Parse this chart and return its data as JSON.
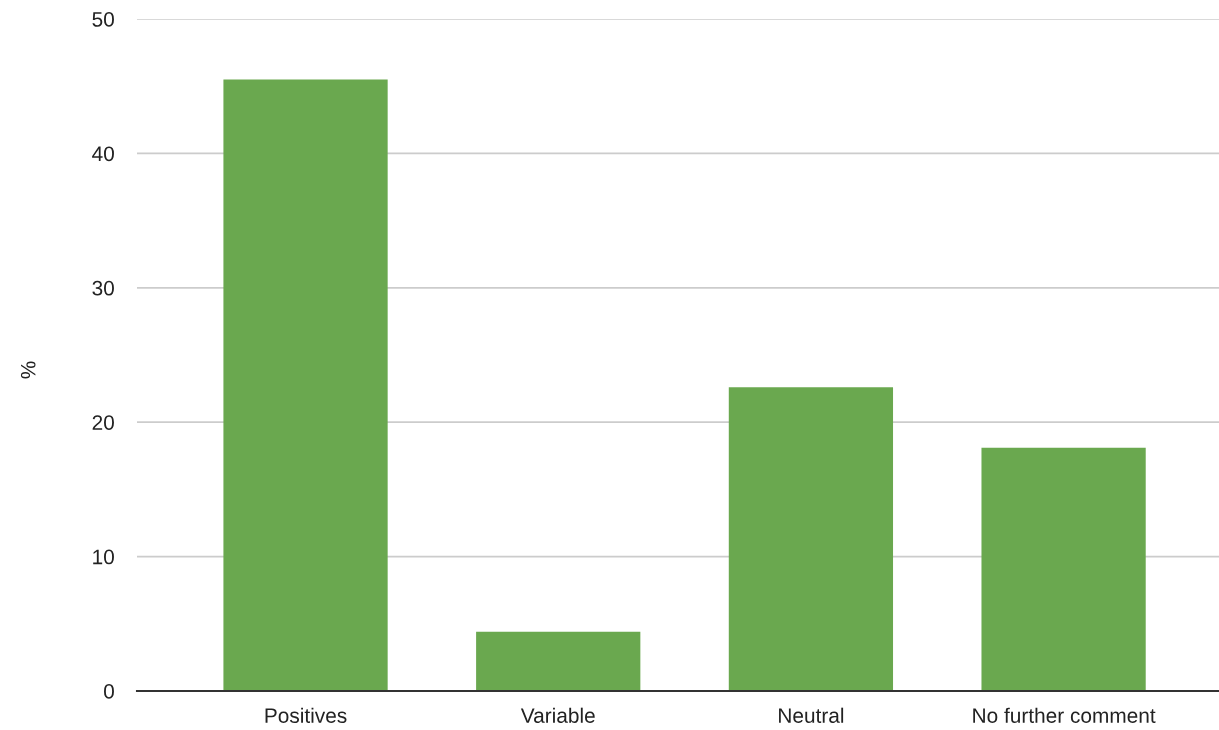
{
  "chart_data": {
    "type": "bar",
    "ylabel": "%",
    "categories": [
      "Positives",
      "Variable",
      "Neutral",
      "No further comment"
    ],
    "values": [
      45.5,
      4.4,
      22.6,
      18.1
    ],
    "color": "#6aa84f",
    "ylim": [
      0,
      50
    ],
    "yticks": [
      0,
      10,
      20,
      30,
      40,
      50
    ],
    "grid": "y"
  }
}
